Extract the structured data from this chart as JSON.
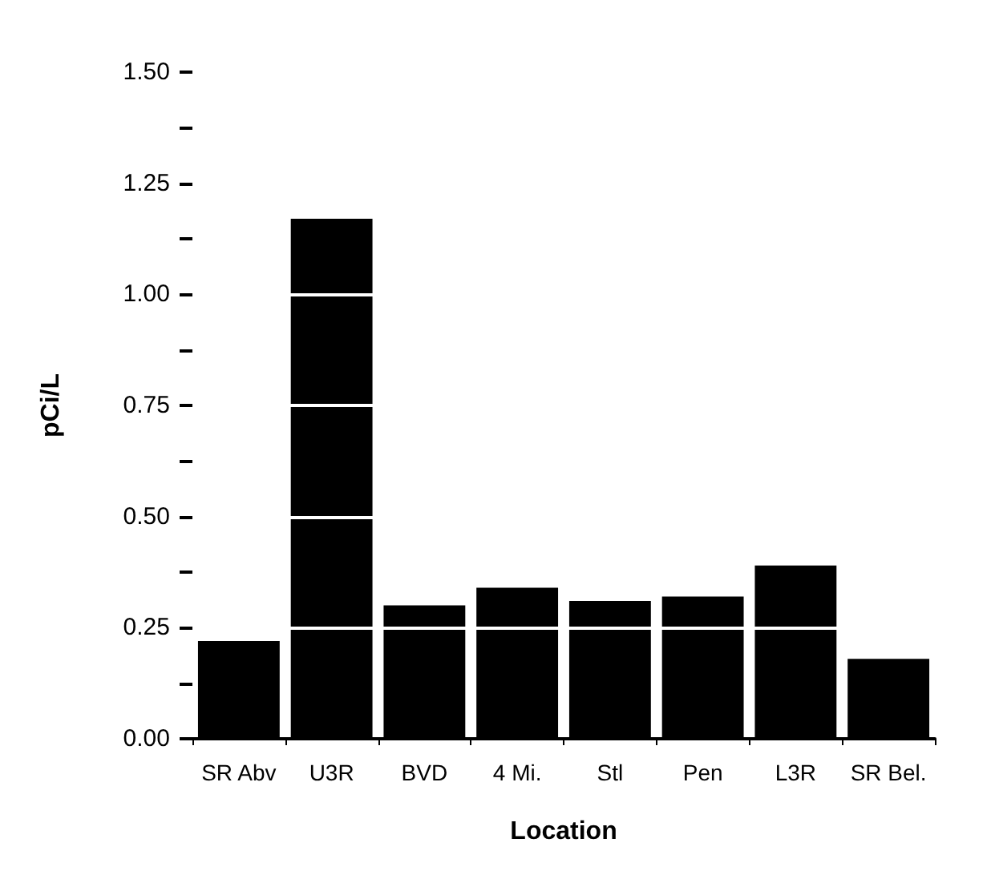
{
  "chart_data": {
    "type": "bar",
    "xlabel": "Location",
    "ylabel": "pCi/L",
    "categories": [
      "SR Abv",
      "U3R",
      "BVD",
      "4 Mi.",
      "Stl",
      "Pen",
      "L3R",
      "SR Bel."
    ],
    "values": [
      0.22,
      1.17,
      0.3,
      0.34,
      0.31,
      0.32,
      0.39,
      0.18
    ],
    "color": "#000000",
    "ylim": [
      0,
      1.5
    ],
    "yticks": [
      {
        "value": 0,
        "label": "0.00"
      },
      {
        "value": 0.125,
        "label": null
      },
      {
        "value": 0.25,
        "label": "0.25"
      },
      {
        "value": 0.375,
        "label": null
      },
      {
        "value": 0.5,
        "label": "0.50"
      },
      {
        "value": 0.625,
        "label": null
      },
      {
        "value": 0.75,
        "label": "0.75"
      },
      {
        "value": 0.875,
        "label": null
      },
      {
        "value": 1,
        "label": "1.00"
      },
      {
        "value": 1.125,
        "label": null
      },
      {
        "value": 1.25,
        "label": "1.25"
      },
      {
        "value": 1.375,
        "label": null
      },
      {
        "value": 1.5,
        "label": "1.50"
      }
    ],
    "grid": "y"
  }
}
